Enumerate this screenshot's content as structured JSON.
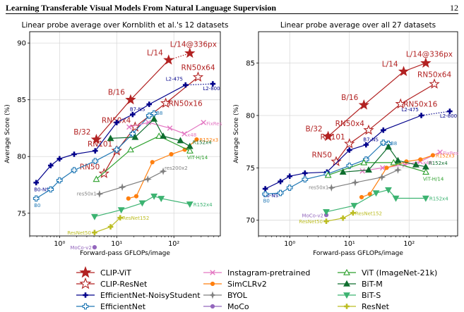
{
  "header": {
    "title": "Learning Transferable Visual Models From Natural Language Supervision",
    "page_number": "12"
  },
  "chart_data": [
    {
      "type": "line",
      "title": "Linear probe average over Kornblith et al.'s 12 datasets",
      "xlabel": "Forward-pass GFLOPs/image",
      "ylabel": "Average Score (%)",
      "xscale": "log",
      "xlim": [
        0.3,
        650
      ],
      "ylim": [
        73,
        91
      ],
      "xticks": [
        {
          "v": 1,
          "label": "10⁰"
        },
        {
          "v": 10,
          "label": "10¹"
        },
        {
          "v": 100,
          "label": "10²"
        }
      ],
      "yticks": [
        75,
        80,
        85,
        90
      ],
      "series": [
        {
          "name": "CLIP-ViT",
          "color": "#b22222",
          "marker": "star",
          "filled": true,
          "dotted_last": true,
          "points": [
            [
              4.4,
              81.5
            ],
            [
              17.5,
              85.0
            ],
            [
              81,
              88.5
            ],
            [
              190,
              89.1
            ]
          ],
          "labels": [
            {
              "i": 0,
              "t": "B/32"
            },
            {
              "i": 1,
              "t": "B/16"
            },
            {
              "i": 2,
              "t": "L/14"
            },
            {
              "i": 3,
              "t": "L/14@336px"
            }
          ]
        },
        {
          "name": "CLIP-ResNet",
          "color": "#b22222",
          "marker": "star",
          "filled": false,
          "points": [
            [
              6,
              78.5
            ],
            [
              10,
              80.5
            ],
            [
              21,
              82.6
            ],
            [
              72,
              84.7
            ],
            [
              265,
              87.0
            ]
          ],
          "labels": [
            {
              "i": 0,
              "t": "RN50"
            },
            {
              "i": 1,
              "t": "RN101"
            },
            {
              "i": 2,
              "t": "RN50x4"
            },
            {
              "i": 3,
              "t": "RN50x16"
            },
            {
              "i": 4,
              "t": "RN50x64"
            }
          ]
        },
        {
          "name": "EfficientNet-NoisyStudent",
          "color": "#00008b",
          "marker": "plus",
          "filled": true,
          "dotted_last": true,
          "points": [
            [
              0.39,
              77.7
            ],
            [
              0.7,
              79.2
            ],
            [
              1.0,
              79.8
            ],
            [
              1.8,
              80.2
            ],
            [
              4.2,
              80.5
            ],
            [
              10,
              83.0
            ],
            [
              19,
              83.7
            ],
            [
              37,
              84.6
            ],
            [
              160,
              86.3
            ],
            [
              480,
              86.4
            ]
          ],
          "labels": [
            {
              "i": 0,
              "t": "B0-NS"
            },
            {
              "i": 6,
              "t": "B7-NS"
            },
            {
              "i": 8,
              "t": "L2-475"
            },
            {
              "i": 9,
              "t": "L2-800"
            }
          ]
        },
        {
          "name": "EfficientNet",
          "color": "#1f77b4",
          "marker": "plus",
          "filled": false,
          "points": [
            [
              0.39,
              76.3
            ],
            [
              0.7,
              77.1
            ],
            [
              1.0,
              77.9
            ],
            [
              1.8,
              78.8
            ],
            [
              4.2,
              79.6
            ],
            [
              10,
              80.6
            ],
            [
              19,
              82.0
            ],
            [
              37,
              83.6
            ],
            [
              45,
              83.8
            ]
          ],
          "labels": [
            {
              "i": 0,
              "t": "B0"
            },
            {
              "i": 8,
              "t": "B8"
            }
          ]
        },
        {
          "name": "Instagram-pretrained",
          "color": "#e377c2",
          "marker": "x",
          "points": [
            [
              16.5,
              82.6
            ],
            [
              36,
              83.0
            ],
            [
              85,
              82.5
            ],
            [
              153,
              82.0
            ],
            [
              330,
              83.0
            ]
          ],
          "labels": [
            {
              "i": 3,
              "t": "x48"
            },
            {
              "i": 4,
              "t": "FixRes"
            }
          ]
        },
        {
          "name": "SimCLRv2",
          "color": "#ff7f0e",
          "marker": "circle",
          "points": [
            [
              16,
              76.3
            ],
            [
              22,
              76.5
            ],
            [
              42,
              79.5
            ],
            [
              90,
              80.2
            ],
            [
              155,
              80.6
            ],
            [
              250,
              81.5
            ]
          ],
          "labels": [
            {
              "i": 5,
              "t": "R152x3"
            }
          ]
        },
        {
          "name": "BYOL",
          "color": "#7f7f7f",
          "marker": "star4",
          "points": [
            [
              5,
              76.7
            ],
            [
              12.5,
              77.3
            ],
            [
              35,
              78.0
            ],
            [
              65,
              78.7
            ]
          ],
          "labels": [
            {
              "i": 0,
              "t": "res50x1"
            },
            {
              "i": 3,
              "t": "res200x2"
            }
          ]
        },
        {
          "name": "MoCo",
          "color": "#9467bd",
          "marker": "circle",
          "points": [
            [
              4.1,
              72.0
            ]
          ],
          "labels": [
            {
              "i": 0,
              "t": "MoCo-v2"
            }
          ]
        },
        {
          "name": "ViT (ImageNet-21k)",
          "color": "#2ca02c",
          "marker": "tri-up",
          "filled": false,
          "points": [
            [
              4.4,
              78.0
            ],
            [
              17.5,
              80.6
            ],
            [
              55,
              81.8
            ],
            [
              191,
              80.5
            ]
          ],
          "labels": [
            {
              "i": 3,
              "t": "ViT-H/14"
            }
          ]
        },
        {
          "name": "BiT-M",
          "color": "#0f6e2f",
          "marker": "tri-up",
          "filled": true,
          "points": [
            [
              7.8,
              81.6
            ],
            [
              21,
              81.7
            ],
            [
              45,
              83.3
            ],
            [
              65,
              81.8
            ],
            [
              130,
              81.4
            ],
            [
              190,
              80.9
            ]
          ],
          "labels": [
            {
              "i": 5,
              "t": "R152x4"
            }
          ]
        },
        {
          "name": "BiT-S",
          "color": "#3cb371",
          "marker": "tri-down",
          "filled": true,
          "points": [
            [
              4.1,
              74.7
            ],
            [
              12,
              75.3
            ],
            [
              28,
              75.9
            ],
            [
              45,
              76.5
            ],
            [
              60,
              76.3
            ],
            [
              190,
              75.8
            ]
          ],
          "labels": [
            {
              "i": 5,
              "t": "R152x4"
            }
          ]
        },
        {
          "name": "ResNet",
          "color": "#bcbd22",
          "marker": "plus",
          "filled": true,
          "points": [
            [
              4.1,
              73.3
            ],
            [
              7.8,
              73.8
            ],
            [
              11.5,
              74.6
            ]
          ],
          "labels": [
            {
              "i": 0,
              "t": "ResNet50"
            },
            {
              "i": 2,
              "t": "ResNet152"
            }
          ]
        }
      ]
    },
    {
      "type": "line",
      "title": "Linear probe average over all 27 datasets",
      "xlabel": "Forward-pass GFLOPs/image",
      "ylabel": "Average Score (%)",
      "xscale": "log",
      "xlim": [
        0.3,
        650
      ],
      "ylim": [
        68.5,
        88
      ],
      "xticks": [
        {
          "v": 1,
          "label": "10⁰"
        },
        {
          "v": 10,
          "label": "10¹"
        },
        {
          "v": 100,
          "label": "10²"
        }
      ],
      "yticks": [
        70,
        75,
        80,
        85
      ],
      "series": [
        {
          "name": "CLIP-ViT",
          "color": "#b22222",
          "marker": "star",
          "filled": true,
          "dotted_last": false,
          "points": [
            [
              4.4,
              78.0
            ],
            [
              17.5,
              81.0
            ],
            [
              81,
              84.2
            ],
            [
              190,
              85.0
            ]
          ],
          "labels": [
            {
              "i": 0,
              "t": "B/32"
            },
            {
              "i": 1,
              "t": "B/16"
            },
            {
              "i": 2,
              "t": "L/14"
            },
            {
              "i": 3,
              "t": "L/14@336px"
            }
          ]
        },
        {
          "name": "CLIP-ResNet",
          "color": "#b22222",
          "marker": "star",
          "filled": false,
          "points": [
            [
              6,
              75.6
            ],
            [
              10,
              77.3
            ],
            [
              21,
              78.6
            ],
            [
              72,
              81.1
            ],
            [
              265,
              83.0
            ]
          ],
          "labels": [
            {
              "i": 0,
              "t": "RN50"
            },
            {
              "i": 1,
              "t": "RN101"
            },
            {
              "i": 2,
              "t": "RN50x4"
            },
            {
              "i": 3,
              "t": "RN50x16"
            },
            {
              "i": 4,
              "t": "RN50x64"
            }
          ]
        },
        {
          "name": "EfficientNet-NoisyStudent",
          "color": "#00008b",
          "marker": "plus",
          "filled": true,
          "dotted_last": true,
          "points": [
            [
              0.39,
              73.0
            ],
            [
              0.7,
              73.7
            ],
            [
              1.0,
              74.2
            ],
            [
              1.8,
              74.5
            ],
            [
              4.2,
              74.6
            ],
            [
              10,
              76.7
            ],
            [
              19,
              77.2
            ],
            [
              37,
              78.6
            ],
            [
              160,
              80.0
            ],
            [
              480,
              80.4
            ]
          ],
          "labels": [
            {
              "i": 0,
              "t": "B0-NS"
            },
            {
              "i": 6,
              "t": "B7-NS"
            },
            {
              "i": 8,
              "t": "L2-475"
            },
            {
              "i": 9,
              "t": "L2-800"
            }
          ]
        },
        {
          "name": "EfficientNet",
          "color": "#1f77b4",
          "marker": "plus",
          "filled": false,
          "points": [
            [
              0.39,
              72.5
            ],
            [
              0.7,
              72.6
            ],
            [
              1.0,
              73.1
            ],
            [
              1.8,
              73.9
            ],
            [
              4.2,
              74.4
            ],
            [
              10,
              75.2
            ],
            [
              19,
              75.8
            ],
            [
              37,
              77.4
            ],
            [
              45,
              77.3
            ]
          ],
          "labels": [
            {
              "i": 0,
              "t": "B0"
            },
            {
              "i": 8,
              "t": "B8"
            }
          ]
        },
        {
          "name": "Instagram-pretrained",
          "color": "#e377c2",
          "marker": "x",
          "points": [
            [
              16.5,
              74.7
            ],
            [
              36,
              75.0
            ],
            [
              85,
              75.3
            ],
            [
              153,
              75.6
            ],
            [
              330,
              76.5
            ]
          ],
          "labels": [
            {
              "i": 3,
              "t": "x48"
            },
            {
              "i": 4,
              "t": "FixRes"
            }
          ]
        },
        {
          "name": "SimCLRv2",
          "color": "#ff7f0e",
          "marker": "circle",
          "points": [
            [
              16,
              72.2
            ],
            [
              22,
              72.5
            ],
            [
              42,
              75.0
            ],
            [
              90,
              75.6
            ],
            [
              155,
              75.8
            ],
            [
              250,
              76.2
            ]
          ],
          "labels": [
            {
              "i": 5,
              "t": "R152x3"
            }
          ]
        },
        {
          "name": "BYOL",
          "color": "#7f7f7f",
          "marker": "star4",
          "points": [
            [
              5,
              73.1
            ],
            [
              12.5,
              73.6
            ],
            [
              35,
              74.1
            ],
            [
              65,
              74.8
            ]
          ],
          "labels": [
            {
              "i": 0,
              "t": "res50x1"
            }
          ]
        },
        {
          "name": "MoCo",
          "color": "#9467bd",
          "marker": "circle",
          "points": [
            [
              4.1,
              70.5
            ]
          ],
          "labels": [
            {
              "i": 0,
              "t": "MoCo-v2"
            }
          ]
        },
        {
          "name": "ViT (ImageNet-21k)",
          "color": "#2ca02c",
          "marker": "tri-up",
          "filled": false,
          "points": [
            [
              4.4,
              74.3
            ],
            [
              17.5,
              75.5
            ],
            [
              55,
              75.5
            ],
            [
              191,
              74.6
            ]
          ],
          "labels": [
            {
              "i": 3,
              "t": "ViT-H/14"
            }
          ]
        },
        {
          "name": "BiT-M",
          "color": "#0f6e2f",
          "marker": "tri-up",
          "filled": true,
          "points": [
            [
              7.8,
              74.6
            ],
            [
              21,
              74.8
            ],
            [
              45,
              77.0
            ],
            [
              65,
              75.7
            ],
            [
              130,
              75.3
            ],
            [
              190,
              75.1
            ]
          ],
          "labels": [
            {
              "i": 5,
              "t": "R152x4"
            }
          ]
        },
        {
          "name": "BiT-S",
          "color": "#3cb371",
          "marker": "tri-down",
          "filled": true,
          "points": [
            [
              4.1,
              70.8
            ],
            [
              12,
              71.4
            ],
            [
              28,
              72.6
            ],
            [
              45,
              72.9
            ],
            [
              60,
              72.1
            ],
            [
              190,
              72.1
            ]
          ],
          "labels": [
            {
              "i": 5,
              "t": "R152x4"
            }
          ]
        },
        {
          "name": "ResNet",
          "color": "#bcbd22",
          "marker": "plus",
          "filled": true,
          "points": [
            [
              4.1,
              69.9
            ],
            [
              7.8,
              70.2
            ],
            [
              11.5,
              70.7
            ]
          ],
          "labels": [
            {
              "i": 0,
              "t": "ResNet50"
            },
            {
              "i": 2,
              "t": "ResNet152"
            }
          ]
        }
      ]
    }
  ],
  "legend": {
    "columns": [
      [
        "CLIP-ViT",
        "CLIP-ResNet",
        "EfficientNet-NoisyStudent",
        "EfficientNet"
      ],
      [
        "Instagram-pretrained",
        "SimCLRv2",
        "BYOL",
        "MoCo"
      ],
      [
        "ViT (ImageNet-21k)",
        "BiT-M",
        "BiT-S",
        "ResNet"
      ]
    ]
  }
}
